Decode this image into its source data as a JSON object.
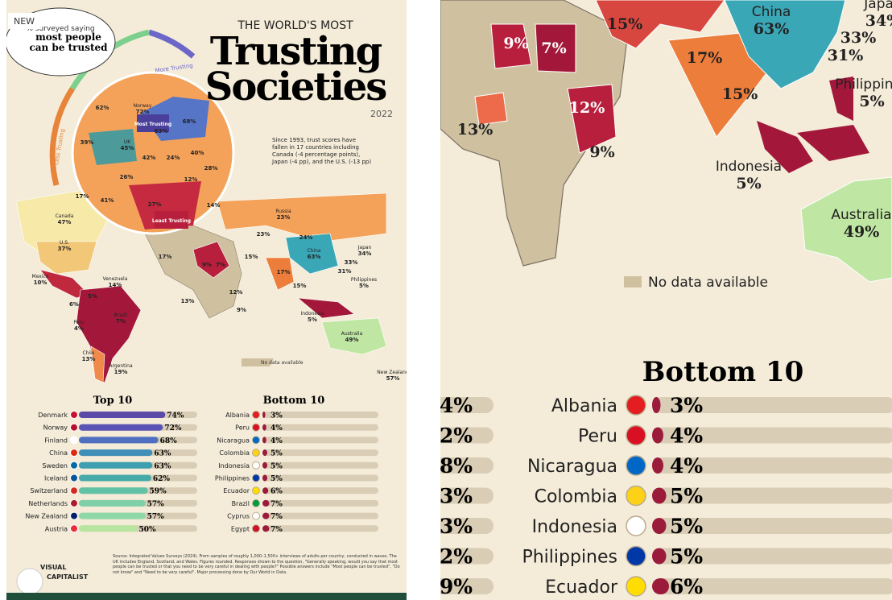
{
  "badge": "NEW",
  "infographic": {
    "quote_lines": [
      "% surveyed saying",
      "most people",
      "can be trusted"
    ],
    "kicker": "THE WORLD'S MOST",
    "title_lines": [
      "Trusting",
      "Societies"
    ],
    "year": "2022",
    "gauge": {
      "more": "More Trusting",
      "less": "Less Trusting",
      "most": "Most Trusting",
      "least": "Least Trusting"
    },
    "note_lines": [
      "Since 1993, trust scores have",
      "fallen in 17 countries including",
      "Canada (-4 percentage points),",
      "Japan (-4 pp), and the U.S. (-13 pp)"
    ],
    "map_labels": [
      {
        "name": "Norway",
        "value": "72%"
      },
      {
        "name": "UK",
        "value": "45%"
      },
      {
        "value": "39%"
      },
      {
        "value": "62%"
      },
      {
        "value": "68%"
      },
      {
        "value": "63%"
      },
      {
        "value": "42%"
      },
      {
        "value": "24%"
      },
      {
        "value": "40%"
      },
      {
        "value": "28%"
      },
      {
        "value": "26%"
      },
      {
        "value": "12%"
      },
      {
        "value": "27%"
      },
      {
        "value": "17%"
      },
      {
        "value": "41%"
      },
      {
        "value": "14%"
      },
      {
        "name": "Russia",
        "value": "23%"
      },
      {
        "value": "23%"
      },
      {
        "value": "24%"
      },
      {
        "name": "China",
        "value": "63%"
      },
      {
        "name": "Japan",
        "value": "34%"
      },
      {
        "value": "33%"
      },
      {
        "value": "31%"
      },
      {
        "name": "Philippines",
        "value": "5%"
      },
      {
        "name": "Indonesia",
        "value": "5%"
      },
      {
        "name": "Australia",
        "value": "49%"
      },
      {
        "name": "New Zealand",
        "value": "57%"
      },
      {
        "name": "Canada",
        "value": "47%"
      },
      {
        "name": "U.S.",
        "value": "37%"
      },
      {
        "name": "Mexico",
        "value": "10%"
      },
      {
        "name": "Venezuela",
        "value": "14%"
      },
      {
        "value": "6%"
      },
      {
        "value": "5%"
      },
      {
        "name": "Peru",
        "value": "4%"
      },
      {
        "name": "Brazil",
        "value": "7%"
      },
      {
        "name": "Chile",
        "value": "13%"
      },
      {
        "name": "Argentina",
        "value": "19%"
      },
      {
        "value": "17%"
      },
      {
        "value": "9%"
      },
      {
        "value": "7%"
      },
      {
        "value": "15%"
      },
      {
        "value": "17%"
      },
      {
        "value": "15%"
      },
      {
        "value": "12%"
      },
      {
        "value": "13%"
      },
      {
        "value": "9%"
      }
    ],
    "legend_no_data": "No data available",
    "top10": {
      "title": "Top 10",
      "rows": [
        {
          "country": "Denmark",
          "value": 74,
          "label": "74%"
        },
        {
          "country": "Norway",
          "value": 72,
          "label": "72%"
        },
        {
          "country": "Finland",
          "value": 68,
          "label": "68%"
        },
        {
          "country": "China",
          "value": 63,
          "label": "63%"
        },
        {
          "country": "Sweden",
          "value": 63,
          "label": "63%"
        },
        {
          "country": "Iceland",
          "value": 62,
          "label": "62%"
        },
        {
          "country": "Switzerland",
          "value": 59,
          "label": "59%"
        },
        {
          "country": "Netherlands",
          "value": 57,
          "label": "57%"
        },
        {
          "country": "New Zealand",
          "value": 57,
          "label": "57%"
        },
        {
          "country": "Austria",
          "value": 50,
          "label": "50%"
        }
      ]
    },
    "bottom10": {
      "title": "Bottom 10",
      "rows": [
        {
          "country": "Albania",
          "value": 3,
          "label": "3%"
        },
        {
          "country": "Peru",
          "value": 4,
          "label": "4%"
        },
        {
          "country": "Nicaragua",
          "value": 4,
          "label": "4%"
        },
        {
          "country": "Colombia",
          "value": 5,
          "label": "5%"
        },
        {
          "country": "Indonesia",
          "value": 5,
          "label": "5%"
        },
        {
          "country": "Philippines",
          "value": 5,
          "label": "5%"
        },
        {
          "country": "Ecuador",
          "value": 6,
          "label": "6%"
        },
        {
          "country": "Brazil",
          "value": 7,
          "label": "7%"
        },
        {
          "country": "Cyprus",
          "value": 7,
          "label": "7%"
        },
        {
          "country": "Egypt",
          "value": 7,
          "label": "7%"
        }
      ]
    },
    "source": "Source: Integrated Values Surveys (2024). From samples of roughly 1,000–1,500+ interviews of adults per country, conducted in waves. The UK includes England, Scotland, and Wales. Figures rounded. Responses shown to the question, \"Generally speaking, would you say that most people can be trusted or that you need to be very careful in dealing with people?\" Possible answers include \"Most people can be trusted\", \"Do not know\" and \"Need to be very careful\". Major processing done by Our World in Data.",
    "brand": [
      "VISUAL",
      "CAPITALIST"
    ]
  }
}
